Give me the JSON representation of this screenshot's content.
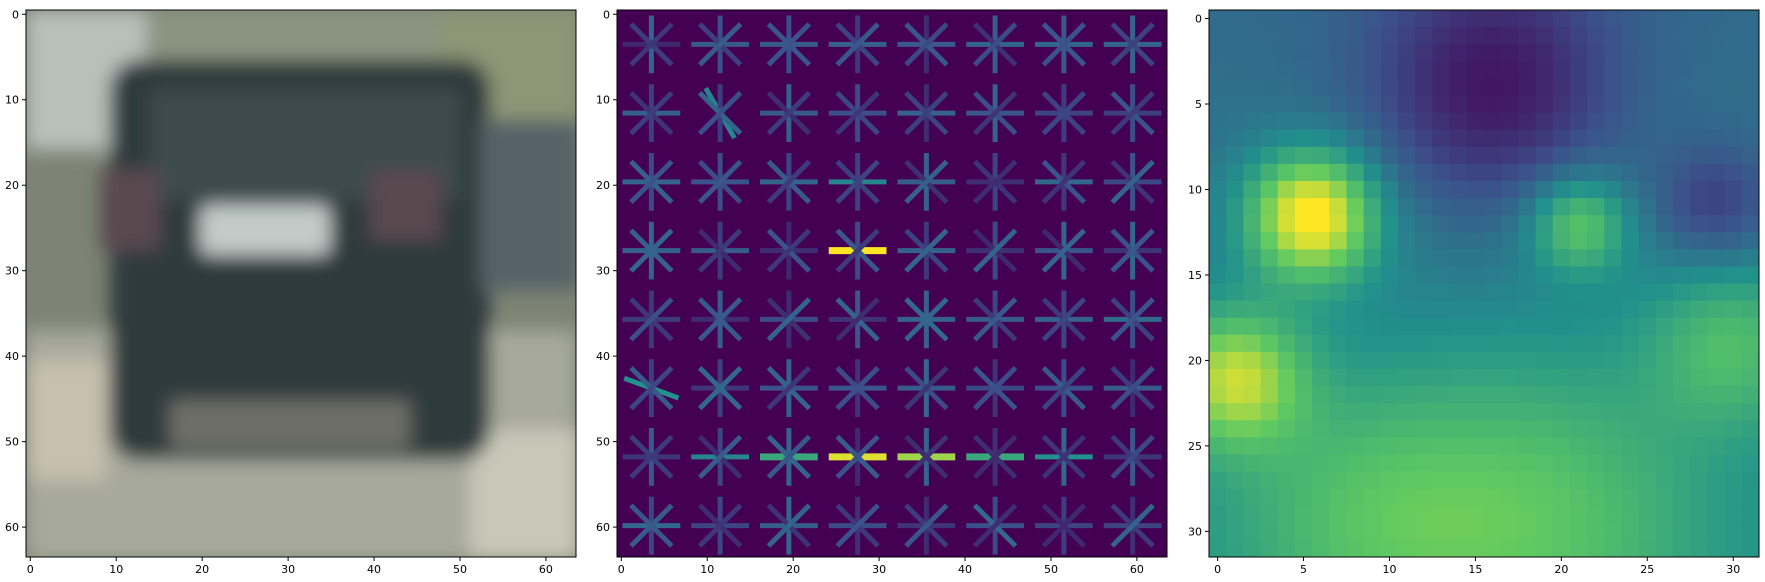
{
  "panels": [
    {
      "name": "image-panel",
      "content": "blurred rear view of dark car on road",
      "xlim": [
        0,
        63
      ],
      "ylim": [
        63,
        0
      ],
      "xticks": [
        0,
        10,
        20,
        30,
        40,
        50,
        60
      ],
      "yticks": [
        0,
        10,
        20,
        30,
        40,
        50,
        60
      ]
    },
    {
      "name": "hog-panel",
      "content": "histogram of oriented gradients visualization, 8x8 cells",
      "xlim": [
        0,
        63
      ],
      "ylim": [
        63,
        0
      ],
      "xticks": [
        0,
        10,
        20,
        30,
        40,
        50,
        60
      ],
      "yticks": [
        0,
        10,
        20,
        30,
        40,
        50,
        60
      ]
    },
    {
      "name": "heatmap-panel",
      "content": "32x32 feature heatmap (viridis)",
      "xlim": [
        0,
        31
      ],
      "ylim": [
        31,
        0
      ],
      "xticks": [
        0,
        5,
        10,
        15,
        20,
        25,
        30
      ],
      "yticks": [
        0,
        5,
        10,
        15,
        20,
        25,
        30
      ]
    }
  ],
  "colors": {
    "viridis_low": "#440154",
    "viridis_mid": "#21918c",
    "viridis_high": "#fde725",
    "road": "#a8aba0",
    "car": "#2f3b3f"
  }
}
